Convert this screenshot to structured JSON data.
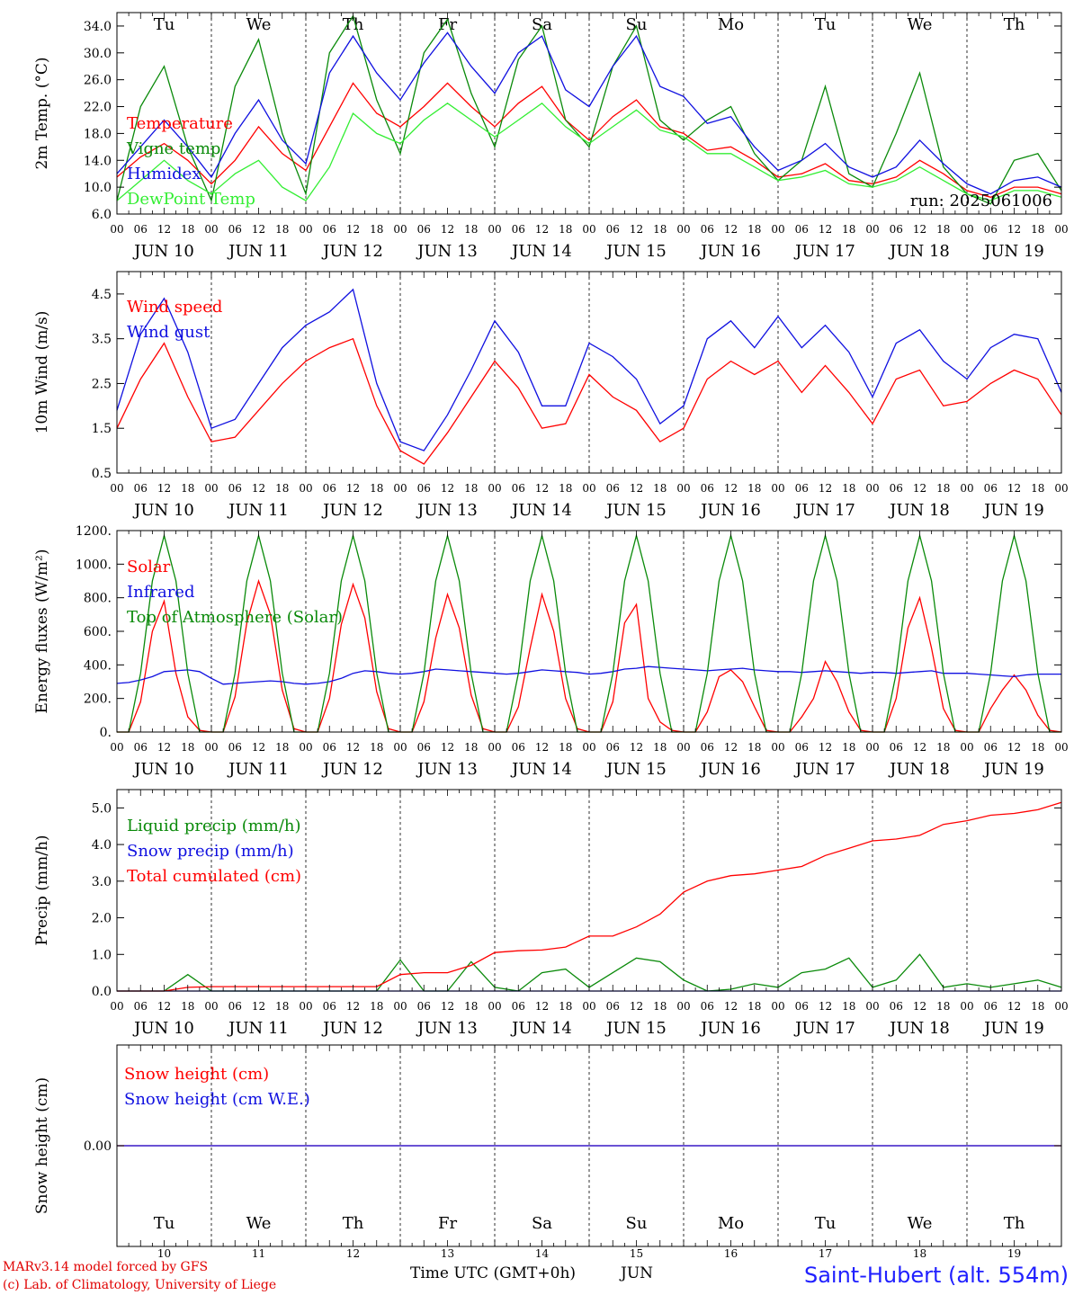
{
  "header": {
    "days": [
      {
        "label": "Tu",
        "color": "#000000"
      },
      {
        "label": "We",
        "color": "#000000"
      },
      {
        "label": "Th",
        "color": "#000000"
      },
      {
        "label": "Fr",
        "color": "#000000"
      },
      {
        "label": "Sa",
        "color": "#e00000"
      },
      {
        "label": "Su",
        "color": "#e00000"
      },
      {
        "label": "Mo",
        "color": "#000000"
      },
      {
        "label": "Tu",
        "color": "#000000"
      },
      {
        "label": "We",
        "color": "#000000"
      },
      {
        "label": "Th",
        "color": "#000000"
      }
    ],
    "dates": [
      "JUN 10",
      "JUN 11",
      "JUN 12",
      "JUN 13",
      "JUN 14",
      "JUN 15",
      "JUN 16",
      "JUN 17",
      "JUN 18",
      "JUN 19"
    ],
    "day_numbers": [
      "10",
      "11",
      "12",
      "13",
      "14",
      "15",
      "16",
      "17",
      "18",
      "19"
    ],
    "hour_ticks": [
      "00",
      "06",
      "12",
      "18"
    ],
    "final_hour": "00"
  },
  "footer": {
    "model_line": "MARv3.14 model forced by GFS",
    "copyright_line": "(c) Lab. of Climatology, University of Liege",
    "time_axis": "Time UTC (GMT+0h)",
    "month": "JUN",
    "station": "Saint-Hubert (alt. 554m)"
  },
  "chart_data": [
    {
      "id": "temperature",
      "type": "line",
      "ylabel": "2m Temp. (°C)",
      "ylim": [
        6.0,
        36.0
      ],
      "yticks": [
        "6.0",
        "10.0",
        "14.0",
        "18.0",
        "22.0",
        "26.0",
        "30.0",
        "34.0"
      ],
      "annotation": "run: 2025061006",
      "x_hours": [
        0,
        6,
        12,
        18,
        24,
        30,
        36,
        42,
        48,
        54,
        60,
        66,
        72,
        78,
        84,
        90,
        96,
        102,
        108,
        114,
        120,
        126,
        132,
        138,
        144,
        150,
        156,
        162,
        168,
        174,
        180,
        186,
        192,
        198,
        204,
        210,
        216,
        222,
        228,
        234,
        240
      ],
      "series": [
        {
          "name": "Temperature",
          "color": "#ff0000",
          "values": [
            11.5,
            14.5,
            16.5,
            14.0,
            10.5,
            14.0,
            19.0,
            15.0,
            12.5,
            19.0,
            25.5,
            21.0,
            19.0,
            22.0,
            25.5,
            22.0,
            19.0,
            22.5,
            25.0,
            20.0,
            17.0,
            20.5,
            23.0,
            19.0,
            18.0,
            15.5,
            16.0,
            14.0,
            11.5,
            12.0,
            13.5,
            11.0,
            10.5,
            11.5,
            14.0,
            12.0,
            9.5,
            8.5,
            10.0,
            10.0,
            9.0
          ]
        },
        {
          "name": "Vigne temp",
          "color": "#0a8a0a",
          "values": [
            8.0,
            22.0,
            28.0,
            16.0,
            8.0,
            25.0,
            32.0,
            18.0,
            9.0,
            30.0,
            35.5,
            23.0,
            15.0,
            30.0,
            35.0,
            24.0,
            16.0,
            29.0,
            34.0,
            20.0,
            16.0,
            28.0,
            34.0,
            20.0,
            17.0,
            20.0,
            22.0,
            15.0,
            11.0,
            14.0,
            25.0,
            12.0,
            10.0,
            18.0,
            27.0,
            13.0,
            9.0,
            7.5,
            14.0,
            15.0,
            9.5
          ]
        },
        {
          "name": "Humidex",
          "color": "#1010e0",
          "values": [
            12.0,
            16.0,
            20.0,
            16.0,
            11.5,
            18.0,
            23.0,
            17.0,
            13.5,
            27.0,
            32.5,
            27.0,
            23.0,
            28.5,
            33.0,
            28.0,
            24.0,
            30.0,
            32.5,
            24.5,
            22.0,
            28.0,
            32.5,
            25.0,
            23.5,
            19.5,
            20.5,
            16.0,
            12.5,
            14.0,
            16.5,
            13.0,
            11.5,
            13.0,
            17.0,
            13.5,
            10.5,
            9.0,
            11.0,
            11.5,
            10.0
          ]
        },
        {
          "name": "DewPoint Temp",
          "color": "#33ee33",
          "values": [
            8.0,
            11.0,
            14.0,
            11.0,
            9.0,
            12.0,
            14.0,
            10.0,
            8.0,
            13.0,
            21.0,
            18.0,
            16.5,
            20.0,
            22.5,
            20.0,
            17.5,
            20.0,
            22.5,
            19.0,
            16.5,
            19.0,
            21.5,
            18.5,
            17.5,
            15.0,
            15.0,
            13.0,
            11.0,
            11.5,
            12.5,
            10.5,
            10.0,
            11.0,
            13.0,
            11.0,
            9.0,
            8.0,
            9.5,
            9.5,
            8.5
          ]
        }
      ]
    },
    {
      "id": "wind",
      "type": "line",
      "ylabel": "10m Wind (m/s)",
      "ylim": [
        0.5,
        5.0
      ],
      "yticks": [
        "0.5",
        "1.5",
        "2.5",
        "3.5",
        "4.5"
      ],
      "x_hours": [
        0,
        6,
        12,
        18,
        24,
        30,
        36,
        42,
        48,
        54,
        60,
        66,
        72,
        78,
        84,
        90,
        96,
        102,
        108,
        114,
        120,
        126,
        132,
        138,
        144,
        150,
        156,
        162,
        168,
        174,
        180,
        186,
        192,
        198,
        204,
        210,
        216,
        222,
        228,
        234,
        240
      ],
      "series": [
        {
          "name": "Wind speed",
          "color": "#ff0000",
          "values": [
            1.5,
            2.6,
            3.4,
            2.2,
            1.2,
            1.3,
            1.9,
            2.5,
            3.0,
            3.3,
            3.5,
            2.0,
            1.0,
            0.7,
            1.4,
            2.2,
            3.0,
            2.4,
            1.5,
            1.6,
            2.7,
            2.2,
            1.9,
            1.2,
            1.5,
            2.6,
            3.0,
            2.7,
            3.0,
            2.3,
            2.9,
            2.3,
            1.6,
            2.6,
            2.8,
            2.0,
            2.1,
            2.5,
            2.8,
            2.6,
            1.8
          ]
        },
        {
          "name": "Wind gust",
          "color": "#1010e0",
          "values": [
            1.9,
            3.6,
            4.4,
            3.2,
            1.5,
            1.7,
            2.5,
            3.3,
            3.8,
            4.1,
            4.6,
            2.5,
            1.2,
            1.0,
            1.8,
            2.8,
            3.9,
            3.2,
            2.0,
            2.0,
            3.4,
            3.1,
            2.6,
            1.6,
            2.0,
            3.5,
            3.9,
            3.3,
            4.0,
            3.3,
            3.8,
            3.2,
            2.2,
            3.4,
            3.7,
            3.0,
            2.6,
            3.3,
            3.6,
            3.5,
            2.3
          ]
        }
      ]
    },
    {
      "id": "energy",
      "type": "line",
      "ylabel": "Energy fluxes (W/m²)",
      "ylim": [
        0,
        1200
      ],
      "yticks": [
        "0.",
        "200.",
        "400.",
        "600.",
        "800.",
        "1000.",
        "1200."
      ],
      "x_hours": [
        0,
        3,
        6,
        9,
        12,
        15,
        18,
        21,
        24,
        27,
        30,
        33,
        36,
        39,
        42,
        45,
        48,
        51,
        54,
        57,
        60,
        63,
        66,
        69,
        72,
        75,
        78,
        81,
        84,
        87,
        90,
        93,
        96,
        99,
        102,
        105,
        108,
        111,
        114,
        117,
        120,
        123,
        126,
        129,
        132,
        135,
        138,
        141,
        144,
        147,
        150,
        153,
        156,
        159,
        162,
        165,
        168,
        171,
        174,
        177,
        180,
        183,
        186,
        189,
        192,
        195,
        198,
        201,
        204,
        207,
        210,
        213,
        216,
        219,
        222,
        225,
        228,
        231,
        234,
        237,
        240
      ],
      "series": [
        {
          "name": "Solar",
          "color": "#ff0000",
          "values": [
            0,
            0,
            180,
            600,
            780,
            350,
            90,
            10,
            0,
            0,
            210,
            650,
            900,
            700,
            250,
            20,
            0,
            0,
            200,
            640,
            880,
            680,
            240,
            20,
            0,
            0,
            180,
            560,
            820,
            620,
            220,
            20,
            0,
            0,
            150,
            500,
            820,
            600,
            200,
            20,
            0,
            0,
            180,
            650,
            760,
            200,
            60,
            10,
            0,
            0,
            120,
            330,
            370,
            300,
            150,
            10,
            0,
            0,
            90,
            200,
            420,
            300,
            120,
            10,
            0,
            0,
            200,
            620,
            800,
            500,
            140,
            10,
            0,
            0,
            140,
            250,
            340,
            250,
            100,
            10,
            0
          ]
        },
        {
          "name": "Infrared",
          "color": "#1010e0",
          "values": [
            290,
            295,
            310,
            330,
            360,
            365,
            370,
            360,
            320,
            285,
            290,
            295,
            300,
            305,
            300,
            290,
            285,
            290,
            300,
            320,
            350,
            365,
            360,
            350,
            345,
            350,
            360,
            375,
            370,
            365,
            360,
            355,
            350,
            345,
            350,
            360,
            370,
            365,
            360,
            355,
            345,
            350,
            360,
            375,
            380,
            390,
            385,
            380,
            375,
            370,
            365,
            370,
            375,
            380,
            370,
            365,
            360,
            360,
            355,
            360,
            365,
            360,
            355,
            350,
            355,
            355,
            350,
            355,
            360,
            365,
            350,
            350,
            350,
            345,
            340,
            335,
            330,
            340,
            345,
            345,
            345
          ]
        },
        {
          "name": "Top of Atmosphere (Solar)",
          "color": "#0a8a0a",
          "values": [
            0,
            0,
            350,
            900,
            1170,
            900,
            350,
            0,
            0,
            0,
            350,
            900,
            1170,
            900,
            350,
            0,
            0,
            0,
            350,
            900,
            1170,
            900,
            350,
            0,
            0,
            0,
            350,
            900,
            1170,
            900,
            350,
            0,
            0,
            0,
            350,
            900,
            1170,
            900,
            350,
            0,
            0,
            0,
            350,
            900,
            1170,
            900,
            350,
            0,
            0,
            0,
            350,
            900,
            1170,
            900,
            350,
            0,
            0,
            0,
            350,
            900,
            1170,
            900,
            350,
            0,
            0,
            0,
            350,
            900,
            1170,
            900,
            350,
            0,
            0,
            0,
            350,
            900,
            1170,
            900,
            350,
            0,
            0
          ]
        }
      ]
    },
    {
      "id": "precip",
      "type": "line",
      "ylabel": "Precip (mm/h)",
      "ylim": [
        0,
        5.5
      ],
      "yticks": [
        "0.0",
        "1.0",
        "2.0",
        "3.0",
        "4.0",
        "5.0"
      ],
      "x_hours": [
        0,
        6,
        12,
        18,
        24,
        30,
        36,
        42,
        48,
        54,
        60,
        66,
        72,
        78,
        84,
        90,
        96,
        102,
        108,
        114,
        120,
        126,
        132,
        138,
        144,
        150,
        156,
        162,
        168,
        174,
        180,
        186,
        192,
        198,
        204,
        210,
        216,
        222,
        228,
        234,
        240
      ],
      "series": [
        {
          "name": "Liquid precip (mm/h)",
          "color": "#0a8a0a",
          "values": [
            0,
            0,
            0,
            0.45,
            0,
            0,
            0,
            0,
            0,
            0,
            0,
            0,
            0.85,
            0,
            0,
            0.8,
            0.1,
            0,
            0.5,
            0.6,
            0.1,
            0.5,
            0.9,
            0.8,
            0.3,
            0,
            0.05,
            0.2,
            0.1,
            0.5,
            0.6,
            0.9,
            0.1,
            0.3,
            1.0,
            0.1,
            0.2,
            0.1,
            0.2,
            0.3,
            0.1
          ]
        },
        {
          "name": "Snow precip (mm/h)",
          "color": "#1010e0",
          "values": [
            0,
            0,
            0,
            0,
            0,
            0,
            0,
            0,
            0,
            0,
            0,
            0,
            0,
            0,
            0,
            0,
            0,
            0,
            0,
            0,
            0,
            0,
            0,
            0,
            0,
            0,
            0,
            0,
            0,
            0,
            0,
            0,
            0,
            0,
            0,
            0,
            0,
            0,
            0,
            0,
            0
          ]
        },
        {
          "name": "Total cumulated (cm)",
          "color": "#ff0000",
          "values": [
            0,
            0,
            0,
            0.1,
            0.12,
            0.12,
            0.12,
            0.12,
            0.12,
            0.12,
            0.12,
            0.12,
            0.45,
            0.5,
            0.5,
            0.7,
            1.05,
            1.1,
            1.12,
            1.2,
            1.5,
            1.5,
            1.75,
            2.1,
            2.7,
            3.0,
            3.15,
            3.2,
            3.3,
            3.4,
            3.7,
            3.9,
            4.1,
            4.15,
            4.25,
            4.55,
            4.65,
            4.8,
            4.85,
            4.95,
            5.15
          ]
        }
      ]
    },
    {
      "id": "snow",
      "type": "line",
      "ylabel": "Snow height (cm)",
      "ylim": [
        -1,
        1
      ],
      "yticks": [
        "0.00"
      ],
      "x_hours": [
        0,
        240
      ],
      "series": [
        {
          "name": "Snow height (cm)",
          "color": "#ff0000",
          "values": [
            0,
            0
          ]
        },
        {
          "name": "Snow height (cm W.E.)",
          "color": "#1010e0",
          "values": [
            0,
            0
          ]
        }
      ]
    }
  ]
}
